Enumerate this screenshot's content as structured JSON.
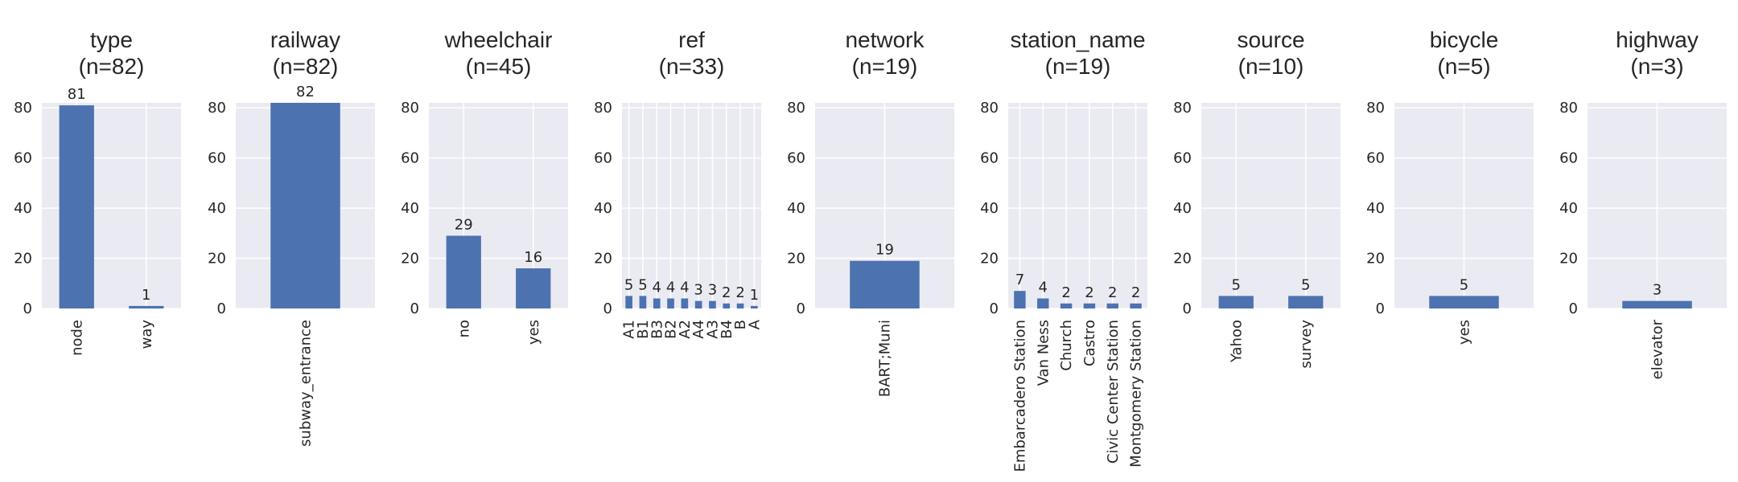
{
  "colors": {
    "bar": "#4c72b0",
    "panel_bg": "#eaeaf2",
    "grid": "#ffffff",
    "text": "#262626"
  },
  "chart_data": [
    {
      "type": "bar",
      "title": "type",
      "subtitle": "(n=82)",
      "ylim": [
        0,
        82
      ],
      "yticks": [
        0,
        20,
        40,
        60,
        80
      ],
      "grid": true,
      "categories": [
        "node",
        "way"
      ],
      "values": [
        81,
        1
      ]
    },
    {
      "type": "bar",
      "title": "railway",
      "subtitle": "(n=82)",
      "ylim": [
        0,
        82
      ],
      "yticks": [
        0,
        20,
        40,
        60,
        80
      ],
      "grid": true,
      "categories": [
        "subway_entrance"
      ],
      "values": [
        82
      ]
    },
    {
      "type": "bar",
      "title": "wheelchair",
      "subtitle": "(n=45)",
      "ylim": [
        0,
        82
      ],
      "yticks": [
        0,
        20,
        40,
        60,
        80
      ],
      "grid": true,
      "categories": [
        "no",
        "yes"
      ],
      "values": [
        29,
        16
      ]
    },
    {
      "type": "bar",
      "title": "ref",
      "subtitle": "(n=33)",
      "ylim": [
        0,
        82
      ],
      "yticks": [
        0,
        20,
        40,
        60,
        80
      ],
      "grid": true,
      "categories": [
        "A1",
        "B1",
        "B3",
        "B2",
        "A2",
        "A4",
        "A3",
        "B4",
        "B",
        "A"
      ],
      "values": [
        5,
        5,
        4,
        4,
        4,
        3,
        3,
        2,
        2,
        1
      ]
    },
    {
      "type": "bar",
      "title": "network",
      "subtitle": "(n=19)",
      "ylim": [
        0,
        82
      ],
      "yticks": [
        0,
        20,
        40,
        60,
        80
      ],
      "grid": true,
      "categories": [
        "BART;Muni"
      ],
      "values": [
        19
      ]
    },
    {
      "type": "bar",
      "title": "station_name",
      "subtitle": "(n=19)",
      "ylim": [
        0,
        82
      ],
      "yticks": [
        0,
        20,
        40,
        60,
        80
      ],
      "grid": true,
      "categories": [
        "Embarcadero Station",
        "Van Ness",
        "Church",
        "Castro",
        "Civic Center Station",
        "Montgomery Station"
      ],
      "values": [
        7,
        4,
        2,
        2,
        2,
        2
      ]
    },
    {
      "type": "bar",
      "title": "source",
      "subtitle": "(n=10)",
      "ylim": [
        0,
        82
      ],
      "yticks": [
        0,
        20,
        40,
        60,
        80
      ],
      "grid": true,
      "categories": [
        "Yahoo",
        "survey"
      ],
      "values": [
        5,
        5
      ]
    },
    {
      "type": "bar",
      "title": "bicycle",
      "subtitle": "(n=5)",
      "ylim": [
        0,
        82
      ],
      "yticks": [
        0,
        20,
        40,
        60,
        80
      ],
      "grid": true,
      "categories": [
        "yes"
      ],
      "values": [
        5
      ]
    },
    {
      "type": "bar",
      "title": "highway",
      "subtitle": "(n=3)",
      "ylim": [
        0,
        82
      ],
      "yticks": [
        0,
        20,
        40,
        60,
        80
      ],
      "grid": true,
      "categories": [
        "elevator"
      ],
      "values": [
        3
      ]
    }
  ]
}
